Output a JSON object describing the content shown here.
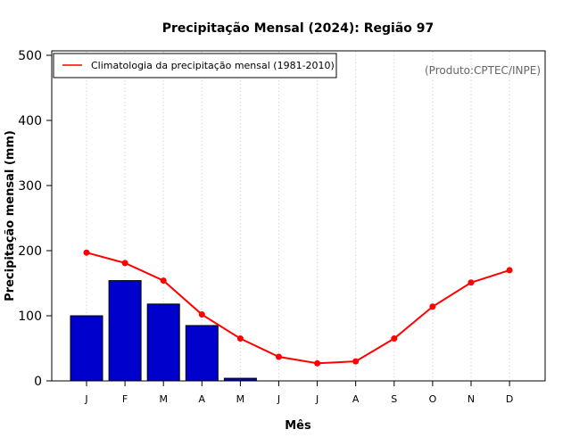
{
  "chart_data": {
    "type": "bar",
    "title": "Precipitação Mensal (2024): Região 97",
    "xlabel": "Mês",
    "ylabel": "Precipitação mensal (mm)",
    "ylim": [
      0,
      500
    ],
    "yticks": [
      0,
      100,
      200,
      300,
      400,
      500
    ],
    "categories": [
      "J",
      "F",
      "M",
      "A",
      "M",
      "J",
      "J",
      "A",
      "S",
      "O",
      "N",
      "D"
    ],
    "series": [
      {
        "name": "Precipitação mensal 2024",
        "type": "bar",
        "color": "#0000CC",
        "values": [
          100,
          154,
          118,
          85,
          4,
          null,
          null,
          null,
          null,
          null,
          null,
          null
        ]
      },
      {
        "name": "Climatologia da precipitação mensal (1981-2010)",
        "type": "line",
        "color": "#FF0000",
        "values": [
          197,
          181,
          154,
          102,
          65,
          37,
          27,
          30,
          65,
          114,
          151,
          170
        ]
      }
    ],
    "legend": {
      "position": "top-left",
      "entries": [
        "Climatologia da precipitação mensal (1981-2010)"
      ]
    },
    "annotation": "(Produto:CPTEC/INPE)",
    "grid": "vertical dotted"
  }
}
